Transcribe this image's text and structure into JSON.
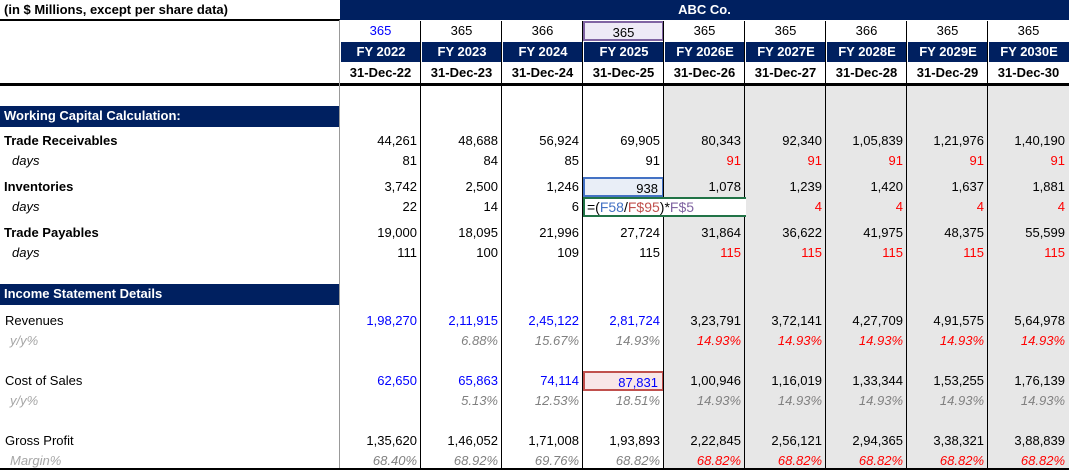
{
  "header": {
    "units_label": "(in $ Millions, except per share data)",
    "company": "ABC Co."
  },
  "days_in_year": [
    "365",
    "365",
    "366",
    "365",
    "365",
    "365",
    "366",
    "365",
    "365"
  ],
  "fiscal_years": [
    "FY 2022",
    "FY 2023",
    "FY 2024",
    "FY 2025",
    "FY 2026E",
    "FY 2027E",
    "FY 2028E",
    "FY 2029E",
    "FY 2030E"
  ],
  "period_end": [
    "31-Dec-22",
    "31-Dec-23",
    "31-Dec-24",
    "31-Dec-25",
    "31-Dec-26",
    "31-Dec-27",
    "31-Dec-28",
    "31-Dec-29",
    "31-Dec-30"
  ],
  "sections": {
    "working_capital": "Working Capital Calculation:",
    "income_statement": "Income Statement Details"
  },
  "rows": [
    {
      "label": "Trade Receivables",
      "values": [
        "44,261",
        "48,688",
        "56,924",
        "69,905",
        "80,343",
        "92,340",
        "1,05,839",
        "1,21,976",
        "1,40,190"
      ]
    },
    {
      "label": "days",
      "values": [
        "81",
        "84",
        "85",
        "91",
        "91",
        "91",
        "91",
        "91",
        "91"
      ]
    },
    {
      "label": "Inventories",
      "values": [
        "3,742",
        "2,500",
        "1,246",
        "938",
        "1,078",
        "1,239",
        "1,420",
        "1,637",
        "1,881"
      ]
    },
    {
      "label": "days",
      "values": [
        "22",
        "14",
        "6",
        "",
        "4",
        "4",
        "4",
        "4",
        "4"
      ]
    },
    {
      "label": "Trade Payables",
      "values": [
        "19,000",
        "18,095",
        "21,996",
        "27,724",
        "31,864",
        "36,622",
        "41,975",
        "48,375",
        "55,599"
      ]
    },
    {
      "label": "days",
      "values": [
        "111",
        "100",
        "109",
        "115",
        "115",
        "115",
        "115",
        "115",
        "115"
      ]
    },
    {
      "label": "Revenues",
      "values": [
        "1,98,270",
        "2,11,915",
        "2,45,122",
        "2,81,724",
        "3,23,791",
        "3,72,141",
        "4,27,709",
        "4,91,575",
        "5,64,978"
      ]
    },
    {
      "label": "y/y%",
      "values": [
        "",
        "6.88%",
        "15.67%",
        "14.93%",
        "14.93%",
        "14.93%",
        "14.93%",
        "14.93%",
        "14.93%"
      ]
    },
    {
      "label": "Cost of Sales",
      "values": [
        "62,650",
        "65,863",
        "74,114",
        "87,831",
        "1,00,946",
        "1,16,019",
        "1,33,344",
        "1,53,255",
        "1,76,139"
      ]
    },
    {
      "label": "y/y%",
      "values": [
        "",
        "5.13%",
        "12.53%",
        "18.51%",
        "14.93%",
        "14.93%",
        "14.93%",
        "14.93%",
        "14.93%"
      ]
    },
    {
      "label": "Gross Profit",
      "values": [
        "1,35,620",
        "1,46,052",
        "1,71,008",
        "1,93,893",
        "2,22,845",
        "2,56,121",
        "2,94,365",
        "3,38,321",
        "3,88,839"
      ]
    },
    {
      "label": "Margin%",
      "values": [
        "68.40%",
        "68.92%",
        "69.76%",
        "68.82%",
        "68.82%",
        "68.82%",
        "68.82%",
        "68.82%",
        "68.82%"
      ]
    }
  ],
  "formula_edit": {
    "text": [
      "=(",
      "F58",
      "/",
      "F$95",
      ")*",
      "F$5"
    ]
  },
  "colors": {
    "navy": "#002060",
    "input_blue": "#0000ff",
    "forecast_red": "#ff0000",
    "muted_grey": "#808080",
    "forecast_fill": "#e7e7e7"
  }
}
